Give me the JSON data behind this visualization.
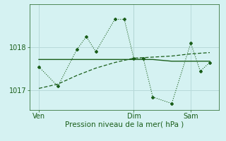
{
  "background_color": "#d5f2f2",
  "grid_color": "#b8dada",
  "line_color": "#1a5e1a",
  "xlabel": "Pression niveau de la mer( hPa )",
  "xlabel_fontsize": 7.5,
  "yticks": [
    1017,
    1018
  ],
  "ylim": [
    1016.55,
    1019.0
  ],
  "xtick_labels": [
    "Ven",
    "Dim",
    "Sam"
  ],
  "xtick_positions": [
    1,
    11,
    17
  ],
  "xlim": [
    0,
    20
  ],
  "series1_x": [
    1,
    3,
    5,
    6,
    7,
    9,
    10,
    11,
    12,
    13,
    15,
    17,
    18,
    19
  ],
  "series1_y": [
    1017.55,
    1017.1,
    1017.95,
    1018.25,
    1017.9,
    1018.65,
    1018.65,
    1017.75,
    1017.75,
    1016.85,
    1016.7,
    1018.1,
    1017.45,
    1017.65
  ],
  "series2_x": [
    1,
    3,
    5,
    7,
    9,
    11,
    13,
    15,
    17,
    19
  ],
  "series2_y": [
    1017.72,
    1017.72,
    1017.72,
    1017.72,
    1017.72,
    1017.72,
    1017.72,
    1017.68,
    1017.68,
    1017.68
  ],
  "series3_x": [
    1,
    3,
    5,
    7,
    9,
    11,
    15,
    17,
    19
  ],
  "series3_y": [
    1017.05,
    1017.15,
    1017.35,
    1017.52,
    1017.65,
    1017.75,
    1017.8,
    1017.85,
    1017.88
  ],
  "vline_x": 11,
  "tick_fontsize": 7.0
}
